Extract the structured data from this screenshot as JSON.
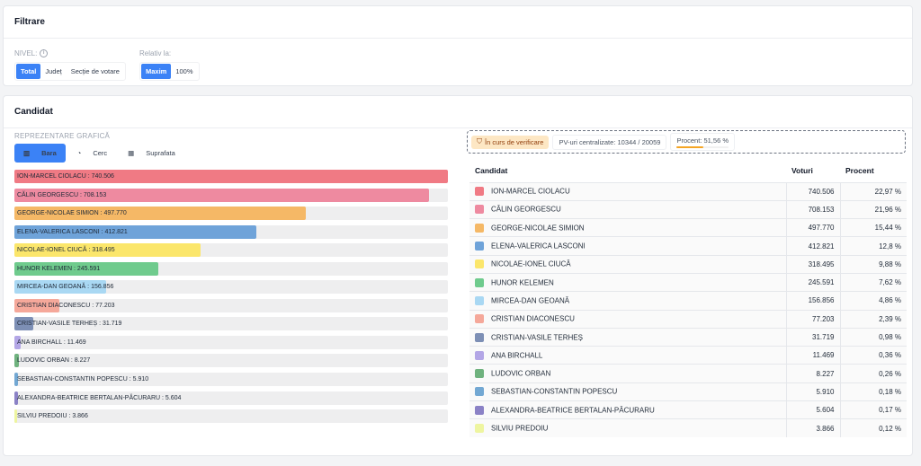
{
  "filter": {
    "title": "Filtrare",
    "nivel_label": "NIVEL:",
    "nivel_options": [
      "Total",
      "Județ",
      "Secție de votare"
    ],
    "nivel_active": 0,
    "relativ_label": "Relativ la:",
    "relativ_options": [
      "Maxim",
      "100%"
    ],
    "relativ_active": 0
  },
  "candidat": {
    "title": "Candidat",
    "rep_label": "REPREZENTARE GRAFICĂ",
    "chart_tabs": [
      "Bara",
      "Cerc",
      "Suprafata"
    ],
    "chart_tab_active": 0,
    "status": {
      "verif_label": "În curs de verificare",
      "pv_label": "PV-uri centralizate: 10344 / 20059",
      "procent_label": "Procent: 51,56 %",
      "procent_value": 51.56
    },
    "table_headers": [
      "Candidat",
      "Voturi",
      "Procent"
    ]
  },
  "chart_data": {
    "type": "bar",
    "xlim": [
      0,
      740506
    ],
    "categories": [
      "ION-MARCEL CIOLACU : 740.506",
      "CĂLIN GEORGESCU : 708.153",
      "GEORGE-NICOLAE SIMION : 497.770",
      "ELENA-VALERICA LASCONI : 412.821",
      "NICOLAE-IONEL CIUCĂ : 318.495",
      "HUNOR KELEMEN : 245.591",
      "MIRCEA-DAN GEOANĂ : 156.856",
      "CRISTIAN DIACONESCU : 77.203",
      "CRISTIAN-VASILE TERHEȘ : 31.719",
      "ANA BIRCHALL : 11.469",
      "LUDOVIC ORBAN : 8.227",
      "SEBASTIAN-CONSTANTIN POPESCU : 5.910",
      "ALEXANDRA-BEATRICE BERTALAN-PĂCURARU : 5.604",
      "SILVIU PREDOIU : 3.866"
    ],
    "values": [
      740506,
      708153,
      497770,
      412821,
      318495,
      245591,
      156856,
      77203,
      31719,
      11469,
      8227,
      5910,
      5604,
      3866
    ],
    "colors": [
      "#f07a84",
      "#ee8aa0",
      "#f5b866",
      "#6fa3d9",
      "#fbe66b",
      "#6fcb8d",
      "#a9d8f3",
      "#f5a89a",
      "#7d8fb5",
      "#b3a6e6",
      "#6fb27e",
      "#73a8d3",
      "#8b82c6",
      "#eef5a0"
    ]
  },
  "rows": [
    {
      "name": "ION-MARCEL CIOLACU",
      "votes": "740.506",
      "pct": "22,97 %"
    },
    {
      "name": "CĂLIN GEORGESCU",
      "votes": "708.153",
      "pct": "21,96 %"
    },
    {
      "name": "GEORGE-NICOLAE SIMION",
      "votes": "497.770",
      "pct": "15,44 %"
    },
    {
      "name": "ELENA-VALERICA LASCONI",
      "votes": "412.821",
      "pct": "12,8 %"
    },
    {
      "name": "NICOLAE-IONEL CIUCĂ",
      "votes": "318.495",
      "pct": "9,88 %"
    },
    {
      "name": "HUNOR KELEMEN",
      "votes": "245.591",
      "pct": "7,62 %"
    },
    {
      "name": "MIRCEA-DAN GEOANĂ",
      "votes": "156.856",
      "pct": "4,86 %"
    },
    {
      "name": "CRISTIAN DIACONESCU",
      "votes": "77.203",
      "pct": "2,39 %"
    },
    {
      "name": "CRISTIAN-VASILE TERHEȘ",
      "votes": "31.719",
      "pct": "0,98 %"
    },
    {
      "name": "ANA BIRCHALL",
      "votes": "11.469",
      "pct": "0,36 %"
    },
    {
      "name": "LUDOVIC ORBAN",
      "votes": "8.227",
      "pct": "0,26 %"
    },
    {
      "name": "SEBASTIAN-CONSTANTIN POPESCU",
      "votes": "5.910",
      "pct": "0,18 %"
    },
    {
      "name": "ALEXANDRA-BEATRICE BERTALAN-PĂCURARU",
      "votes": "5.604",
      "pct": "0,17 %"
    },
    {
      "name": "SILVIU PREDOIU",
      "votes": "3.866",
      "pct": "0,12 %"
    }
  ]
}
